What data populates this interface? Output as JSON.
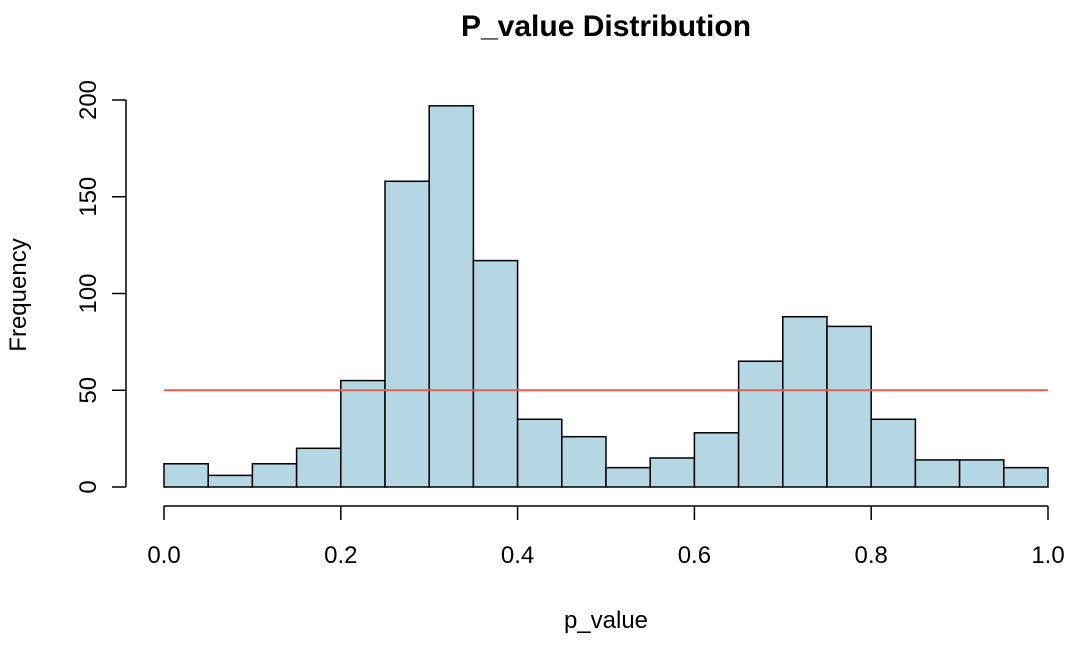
{
  "chart_data": {
    "type": "bar",
    "title": "P_value Distribution",
    "xlabel": "p_value",
    "ylabel": "Frequency",
    "bins": [
      {
        "start": 0.0,
        "end": 0.05,
        "value": 12
      },
      {
        "start": 0.05,
        "end": 0.1,
        "value": 6
      },
      {
        "start": 0.1,
        "end": 0.15,
        "value": 12
      },
      {
        "start": 0.15,
        "end": 0.2,
        "value": 20
      },
      {
        "start": 0.2,
        "end": 0.25,
        "value": 55
      },
      {
        "start": 0.25,
        "end": 0.3,
        "value": 158
      },
      {
        "start": 0.3,
        "end": 0.35,
        "value": 197
      },
      {
        "start": 0.35,
        "end": 0.4,
        "value": 117
      },
      {
        "start": 0.4,
        "end": 0.45,
        "value": 35
      },
      {
        "start": 0.45,
        "end": 0.5,
        "value": 26
      },
      {
        "start": 0.5,
        "end": 0.55,
        "value": 10
      },
      {
        "start": 0.55,
        "end": 0.6,
        "value": 15
      },
      {
        "start": 0.6,
        "end": 0.65,
        "value": 28
      },
      {
        "start": 0.65,
        "end": 0.7,
        "value": 65
      },
      {
        "start": 0.7,
        "end": 0.75,
        "value": 88
      },
      {
        "start": 0.75,
        "end": 0.8,
        "value": 83
      },
      {
        "start": 0.8,
        "end": 0.85,
        "value": 35
      },
      {
        "start": 0.85,
        "end": 0.9,
        "value": 14
      },
      {
        "start": 0.9,
        "end": 0.95,
        "value": 14
      },
      {
        "start": 0.95,
        "end": 1.0,
        "value": 10
      }
    ],
    "xlim": [
      0,
      1
    ],
    "ylim": [
      0,
      200
    ],
    "xticks": [
      0.0,
      0.2,
      0.4,
      0.6,
      0.8,
      1.0
    ],
    "xtick_labels": [
      "0.0",
      "0.2",
      "0.4",
      "0.6",
      "0.8",
      "1.0"
    ],
    "yticks": [
      0,
      50,
      100,
      150,
      200
    ],
    "ytick_labels": [
      "0",
      "50",
      "100",
      "150",
      "200"
    ],
    "reference_line": {
      "y": 50,
      "x_from": 0,
      "x_to": 1
    },
    "bar_color": "#b5d7e3",
    "reference_line_color": "#e06050",
    "grid": false,
    "legend": "none"
  }
}
